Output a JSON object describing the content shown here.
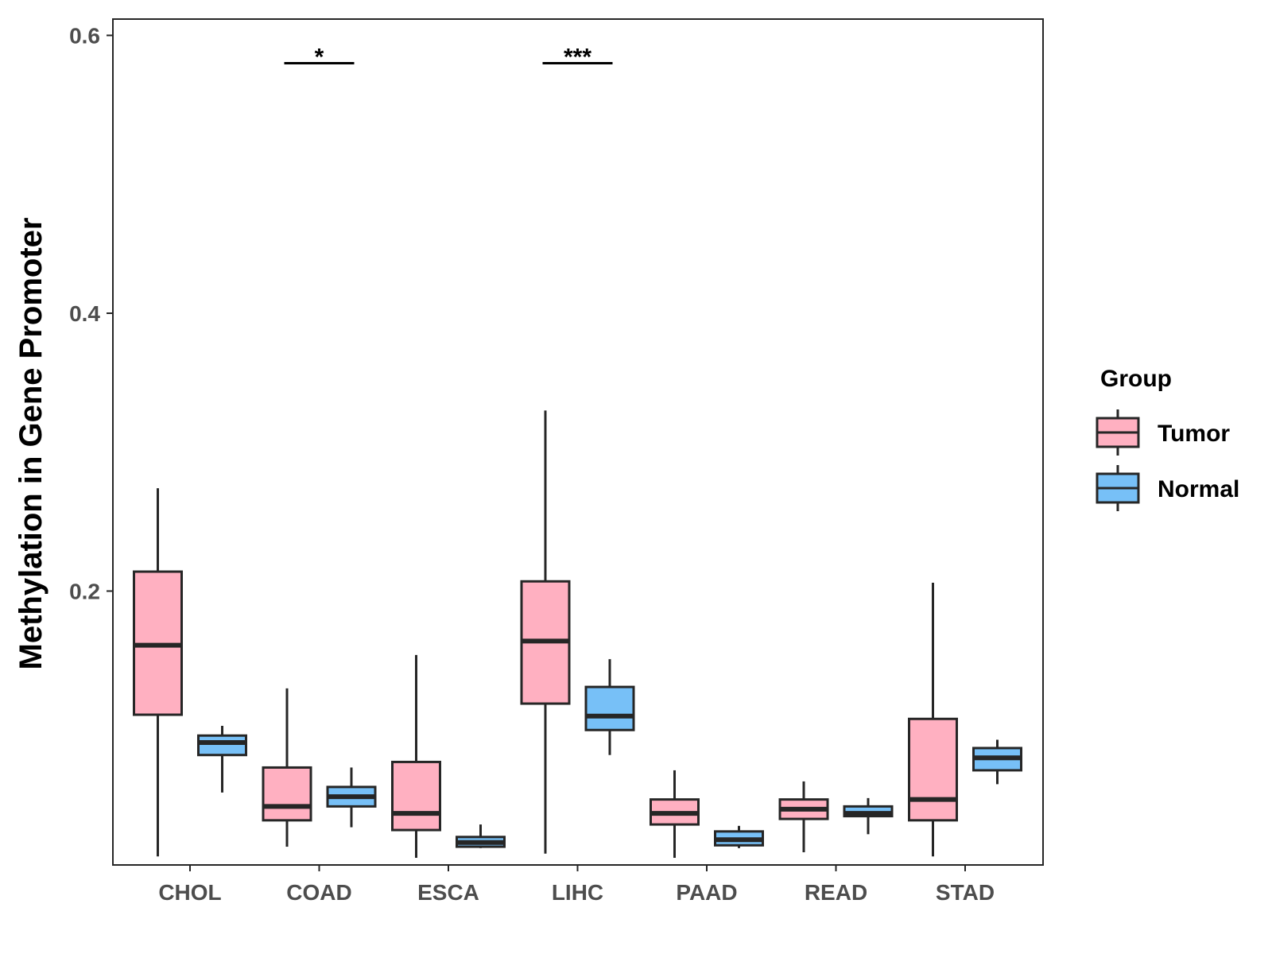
{
  "chart_data": {
    "type": "boxplot",
    "title": "",
    "xlabel": "",
    "ylabel": "Methylation in Gene Promoter",
    "ylim": [
      0.0,
      0.61
    ],
    "yticks": [
      0.2,
      0.4,
      0.6
    ],
    "ytick_labels": [
      "0.2",
      "0.4",
      "0.6"
    ],
    "categories": [
      "CHOL",
      "COAD",
      "ESCA",
      "LIHC",
      "PAAD",
      "READ",
      "STAD"
    ],
    "grid": false,
    "legend": {
      "title": "Group",
      "position": "right",
      "entries": [
        {
          "name": "Tumor",
          "color": "#FFB0C1"
        },
        {
          "name": "Normal",
          "color": "#77C0F7"
        }
      ]
    },
    "series": [
      {
        "name": "Tumor",
        "color": "#FFB0C1",
        "boxes": [
          {
            "category": "CHOL",
            "whisker_low": 0.009,
            "q1": 0.111,
            "median": 0.161,
            "q3": 0.214,
            "whisker_high": 0.274
          },
          {
            "category": "COAD",
            "whisker_low": 0.016,
            "q1": 0.035,
            "median": 0.045,
            "q3": 0.073,
            "whisker_high": 0.13
          },
          {
            "category": "ESCA",
            "whisker_low": 0.008,
            "q1": 0.028,
            "median": 0.04,
            "q3": 0.077,
            "whisker_high": 0.154
          },
          {
            "category": "LIHC",
            "whisker_low": 0.011,
            "q1": 0.119,
            "median": 0.164,
            "q3": 0.207,
            "whisker_high": 0.33
          },
          {
            "category": "PAAD",
            "whisker_low": 0.008,
            "q1": 0.032,
            "median": 0.04,
            "q3": 0.05,
            "whisker_high": 0.071
          },
          {
            "category": "READ",
            "whisker_low": 0.012,
            "q1": 0.036,
            "median": 0.043,
            "q3": 0.05,
            "whisker_high": 0.063
          },
          {
            "category": "STAD",
            "whisker_low": 0.009,
            "q1": 0.035,
            "median": 0.05,
            "q3": 0.108,
            "whisker_high": 0.206
          }
        ]
      },
      {
        "name": "Normal",
        "color": "#77C0F7",
        "boxes": [
          {
            "category": "CHOL",
            "whisker_low": 0.055,
            "q1": 0.082,
            "median": 0.091,
            "q3": 0.096,
            "whisker_high": 0.103
          },
          {
            "category": "COAD",
            "whisker_low": 0.03,
            "q1": 0.045,
            "median": 0.052,
            "q3": 0.059,
            "whisker_high": 0.073
          },
          {
            "category": "ESCA",
            "whisker_low": 0.015,
            "q1": 0.016,
            "median": 0.019,
            "q3": 0.023,
            "whisker_high": 0.032
          },
          {
            "category": "LIHC",
            "whisker_low": 0.082,
            "q1": 0.1,
            "median": 0.11,
            "q3": 0.131,
            "whisker_high": 0.151
          },
          {
            "category": "PAAD",
            "whisker_low": 0.015,
            "q1": 0.017,
            "median": 0.021,
            "q3": 0.027,
            "whisker_high": 0.031
          },
          {
            "category": "READ",
            "whisker_low": 0.025,
            "q1": 0.038,
            "median": 0.04,
            "q3": 0.045,
            "whisker_high": 0.051
          },
          {
            "category": "STAD",
            "whisker_low": 0.061,
            "q1": 0.071,
            "median": 0.08,
            "q3": 0.087,
            "whisker_high": 0.093
          }
        ]
      }
    ],
    "annotations": [
      {
        "category": "COAD",
        "label": "*",
        "y": 0.58
      },
      {
        "category": "LIHC",
        "label": "***",
        "y": 0.58
      }
    ]
  }
}
